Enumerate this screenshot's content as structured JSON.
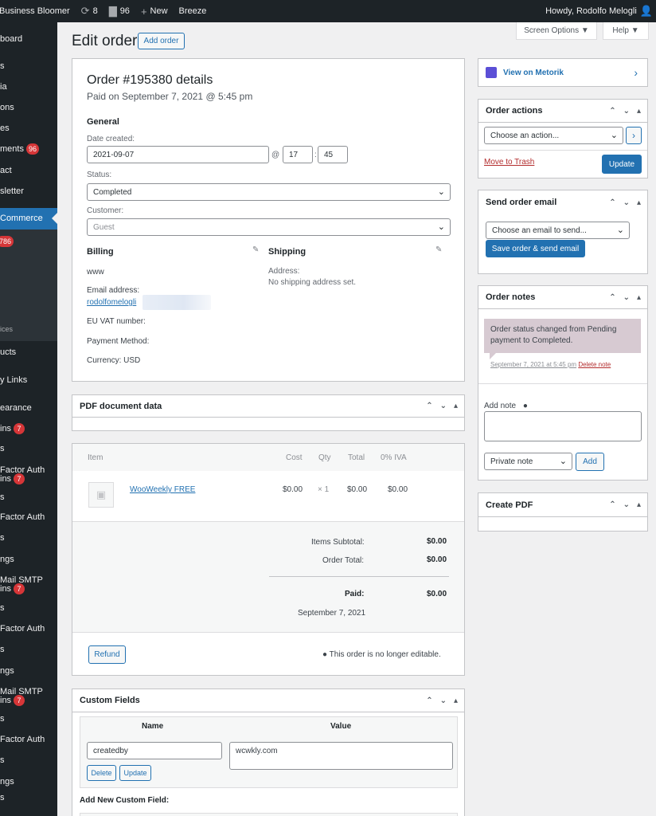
{
  "adminbar": {
    "site_name": "Business Bloomer",
    "updates_count": "8",
    "comments_count": "96",
    "new_label": "New",
    "plugin_label": "Breeze",
    "howdy": "Howdy, Rodolfo Melogli"
  },
  "sidebar": {
    "items": [
      "board",
      "s",
      "ia",
      "ons",
      "es",
      "ments",
      "act",
      "sletter",
      "Commerce",
      "786",
      "ices",
      "ucts",
      "y Links",
      "earance",
      "ins",
      "s",
      "Factor Auth",
      "ins",
      "s",
      "Factor Auth",
      "s",
      "ngs",
      "Mail SMTP",
      "ins",
      "s",
      "Factor Auth",
      "s",
      "ngs",
      "Mail SMTP",
      "ins",
      "s",
      "Factor Auth",
      "s",
      "ngs",
      "s"
    ],
    "comments_badge": "96",
    "plugins_badge": "7"
  },
  "header": {
    "title": "Edit order",
    "add_order": "Add order",
    "screen_options": "Screen Options ▼",
    "help": "Help ▼"
  },
  "order": {
    "title": "Order #195380 details",
    "subtitle": "Paid on September 7, 2021 @ 5:45 pm",
    "general": "General",
    "date_created_label": "Date created:",
    "date": "2021-09-07",
    "at": "@",
    "hour": "17",
    "colon": ":",
    "minute": "45",
    "status_label": "Status:",
    "status": "Completed",
    "customer_label": "Customer:",
    "customer_placeholder": "Guest",
    "billing": {
      "heading": "Billing",
      "name": "www",
      "email_label": "Email address:",
      "email": "rodolfomelogli",
      "vat_label": "EU VAT number:",
      "payment_label": "Payment Method:",
      "currency_label": "Currency:",
      "currency": "USD"
    },
    "shipping": {
      "heading": "Shipping",
      "address_label": "Address:",
      "address": "No shipping address set."
    }
  },
  "pdf_panel": {
    "title": "PDF document data"
  },
  "items": {
    "headers": {
      "item": "Item",
      "cost": "Cost",
      "qty": "Qty",
      "total": "Total",
      "tax": "0% IVA"
    },
    "rows": [
      {
        "name": "WooWeekly FREE",
        "cost": "$0.00",
        "qty": "× 1",
        "total": "$0.00",
        "tax": "$0.00"
      }
    ],
    "subtotal_label": "Items Subtotal:",
    "subtotal": "$0.00",
    "order_total_label": "Order Total:",
    "order_total": "$0.00",
    "paid_label": "Paid:",
    "paid": "$0.00",
    "paid_date": "September 7, 2021",
    "refund": "Refund",
    "not_editable": "This order is no longer editable."
  },
  "custom_fields": {
    "title": "Custom Fields",
    "name_header": "Name",
    "value_header": "Value",
    "key": "createdby",
    "value": "wcwkly.com",
    "delete": "Delete",
    "update": "Update",
    "add_new": "Add New Custom Field:"
  },
  "metorik": {
    "label": "View on Metorik"
  },
  "order_actions": {
    "title": "Order actions",
    "select": "Choose an action...",
    "trash": "Move to Trash",
    "update": "Update"
  },
  "send_email": {
    "title": "Send order email",
    "select": "Choose an email to send...",
    "button": "Save order & send email"
  },
  "order_notes": {
    "title": "Order notes",
    "note": "Order status changed from Pending payment to Completed.",
    "meta": "September 7, 2021 at 5:45 pm",
    "delete": "Delete note",
    "add_note_label": "Add note",
    "note_type": "Private note",
    "add": "Add"
  },
  "create_pdf": {
    "title": "Create PDF"
  }
}
